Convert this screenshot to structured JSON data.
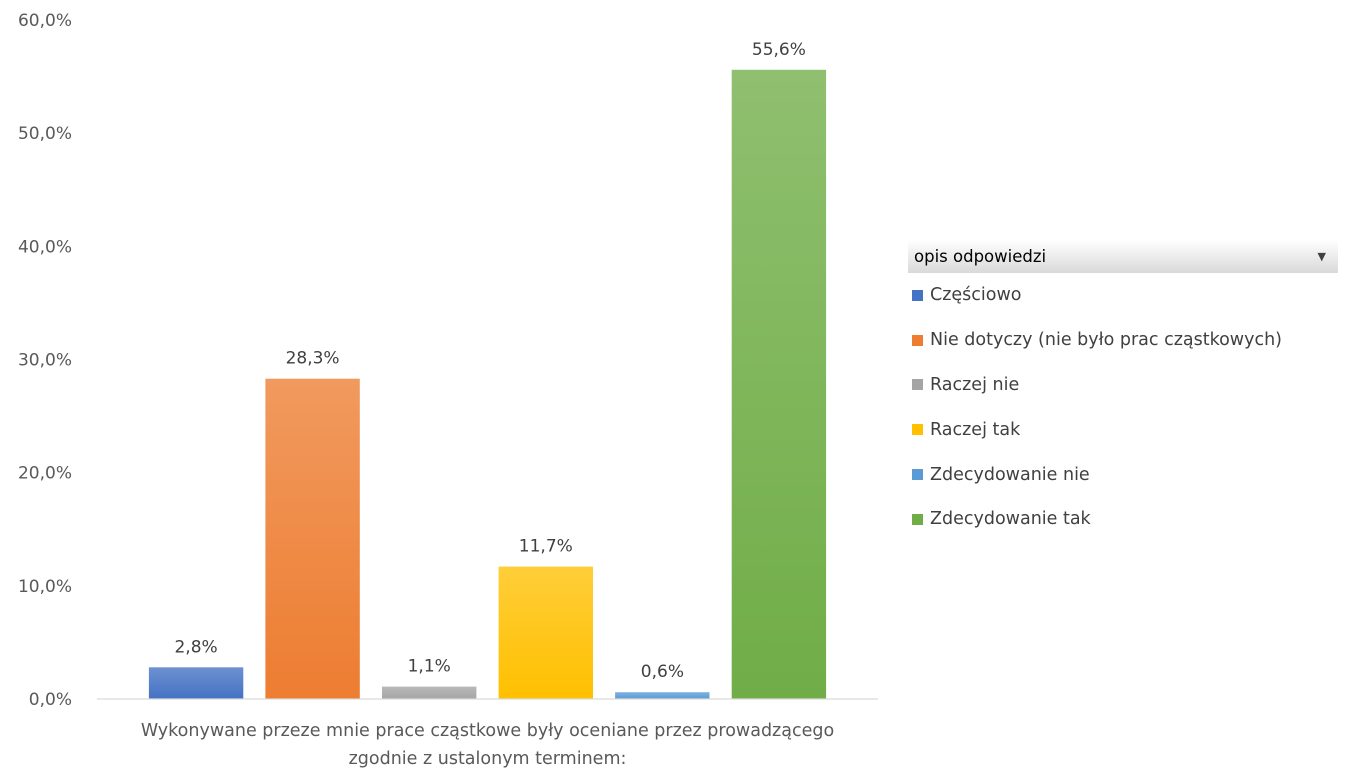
{
  "chart_data": {
    "type": "bar",
    "categories": [
      "Wykonywane przeze mnie prace cząstkowe były oceniane przez prowadzącego zgodnie z ustalonym terminem:"
    ],
    "category_label_lines": [
      "Wykonywane przeze mnie prace cząstkowe były oceniane przez prowadzącego",
      "zgodnie z ustalonym terminem:"
    ],
    "series": [
      {
        "name": "Częściowo",
        "values": [
          2.8
        ],
        "label": "2,8%",
        "color": "#4472c4"
      },
      {
        "name": "Nie dotyczy (nie było prac cząstkowych)",
        "values": [
          28.3
        ],
        "label": "28,3%",
        "color": "#ed7d31"
      },
      {
        "name": "Raczej nie",
        "values": [
          1.1
        ],
        "label": "1,1%",
        "color": "#a5a5a5"
      },
      {
        "name": "Raczej tak",
        "values": [
          11.7
        ],
        "label": "11,7%",
        "color": "#ffc000"
      },
      {
        "name": "Zdecydowanie nie",
        "values": [
          0.6
        ],
        "label": "0,6%",
        "color": "#5b9bd5"
      },
      {
        "name": "Zdecydowanie tak",
        "values": [
          55.6
        ],
        "label": "55,6%",
        "color": "#70ad47"
      }
    ],
    "ylim": [
      0,
      60
    ],
    "yticks": [
      {
        "value": 0,
        "label": "0,0%"
      },
      {
        "value": 10,
        "label": "10,0%"
      },
      {
        "value": 20,
        "label": "20,0%"
      },
      {
        "value": 30,
        "label": "30,0%"
      },
      {
        "value": 40,
        "label": "40,0%"
      },
      {
        "value": 50,
        "label": "50,0%"
      },
      {
        "value": 60,
        "label": "60,0%"
      }
    ],
    "grid": false,
    "legend_position": "right",
    "legend_title": "opis odpowiedzi"
  }
}
